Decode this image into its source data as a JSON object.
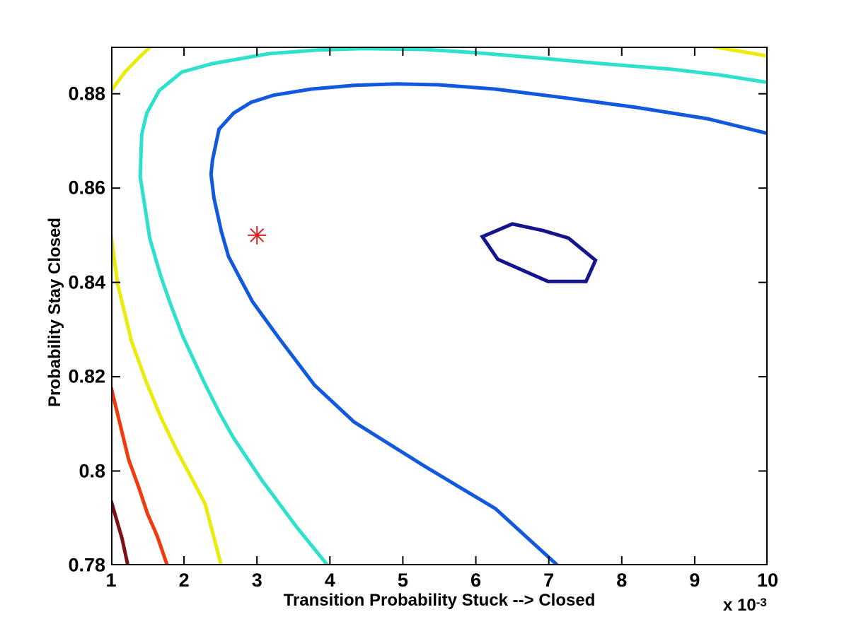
{
  "figure": {
    "background": "#ffffff",
    "axis_color": "#000000"
  },
  "chart_data": {
    "type": "contour",
    "title": "",
    "xlabel": "Transition Probability Stuck --> Closed",
    "ylabel": "Probability Stay Closed",
    "x_scale_note": {
      "prefix": "x 10",
      "exponent": "-3"
    },
    "xlim": [
      1,
      10
    ],
    "ylim": [
      0.78,
      0.89
    ],
    "grid": false,
    "legend": "none",
    "xticks": [
      {
        "label": "1",
        "value": 1
      },
      {
        "label": "2",
        "value": 2
      },
      {
        "label": "3",
        "value": 3
      },
      {
        "label": "4",
        "value": 4
      },
      {
        "label": "5",
        "value": 5
      },
      {
        "label": "6",
        "value": 6
      },
      {
        "label": "7",
        "value": 7
      },
      {
        "label": "8",
        "value": 8
      },
      {
        "label": "9",
        "value": 9
      },
      {
        "label": "10",
        "value": 10
      }
    ],
    "yticks": [
      {
        "label": "0.78",
        "value": 0.78
      },
      {
        "label": "0.8",
        "value": 0.8
      },
      {
        "label": "0.82",
        "value": 0.82
      },
      {
        "label": "0.84",
        "value": 0.84
      },
      {
        "label": "0.86",
        "value": 0.86
      },
      {
        "label": "0.88",
        "value": 0.88
      }
    ],
    "marker": {
      "name": "estimate-marker",
      "shape": "asterisk",
      "x": 3.0,
      "y": 0.85,
      "color": "#D62020",
      "size": 13,
      "stroke_width": 2
    },
    "line_width": 5,
    "contours": [
      {
        "name": "level-maroon",
        "color": "#7E1113",
        "closed": false,
        "points": [
          [
            1.0,
            0.7937
          ],
          [
            1.15,
            0.7857
          ],
          [
            1.23,
            0.78
          ]
        ]
      },
      {
        "name": "level-orangered",
        "color": "#F23A0F",
        "closed": false,
        "points": [
          [
            1.0,
            0.8178
          ],
          [
            1.13,
            0.8095
          ],
          [
            1.24,
            0.8025
          ],
          [
            1.38,
            0.7965
          ],
          [
            1.5,
            0.7909
          ],
          [
            1.63,
            0.7863
          ],
          [
            1.77,
            0.78
          ]
        ]
      },
      {
        "name": "level-yellow-upper-left",
        "color": "#EBEB0E",
        "closed": false,
        "points": [
          [
            1.54,
            0.89
          ],
          [
            1.37,
            0.8875
          ],
          [
            1.19,
            0.8846
          ],
          [
            1.06,
            0.8819
          ],
          [
            1.0,
            0.8805
          ]
        ]
      },
      {
        "name": "level-yellow-lower-left",
        "color": "#EBEB0E",
        "closed": false,
        "points": [
          [
            1.0,
            0.85
          ],
          [
            1.09,
            0.8396
          ],
          [
            1.28,
            0.8275
          ],
          [
            1.48,
            0.819
          ],
          [
            1.68,
            0.8115
          ],
          [
            1.9,
            0.8044
          ],
          [
            2.08,
            0.7992
          ],
          [
            2.29,
            0.793
          ],
          [
            2.51,
            0.78
          ]
        ]
      },
      {
        "name": "level-yellow-top-right",
        "color": "#EBEB0E",
        "closed": false,
        "points": [
          [
            9.25,
            0.89
          ],
          [
            10.0,
            0.888
          ]
        ]
      },
      {
        "name": "level-cyan",
        "color": "#2EE1CC",
        "closed": false,
        "points": [
          [
            10.0,
            0.8824
          ],
          [
            9.34,
            0.884
          ],
          [
            8.69,
            0.8852
          ],
          [
            7.72,
            0.8864
          ],
          [
            6.85,
            0.8876
          ],
          [
            6.02,
            0.8887
          ],
          [
            5.3,
            0.8894
          ],
          [
            4.46,
            0.8896
          ],
          [
            3.84,
            0.8893
          ],
          [
            3.16,
            0.8885
          ],
          [
            2.39,
            0.8864
          ],
          [
            1.97,
            0.8846
          ],
          [
            1.66,
            0.8807
          ],
          [
            1.49,
            0.8759
          ],
          [
            1.42,
            0.8714
          ],
          [
            1.4,
            0.8624
          ],
          [
            1.47,
            0.8554
          ],
          [
            1.53,
            0.8494
          ],
          [
            1.68,
            0.8414
          ],
          [
            1.81,
            0.8356
          ],
          [
            1.98,
            0.8287
          ],
          [
            2.27,
            0.819
          ],
          [
            2.48,
            0.8125
          ],
          [
            2.68,
            0.807
          ],
          [
            3.07,
            0.798
          ],
          [
            3.55,
            0.788
          ],
          [
            3.97,
            0.78
          ]
        ]
      },
      {
        "name": "level-blue",
        "color": "#1259E0",
        "closed": false,
        "points": [
          [
            10.0,
            0.8716
          ],
          [
            9.18,
            0.8747
          ],
          [
            8.21,
            0.8771
          ],
          [
            7.24,
            0.8791
          ],
          [
            6.27,
            0.881
          ],
          [
            5.49,
            0.8819
          ],
          [
            4.91,
            0.8821
          ],
          [
            4.33,
            0.8818
          ],
          [
            3.74,
            0.881
          ],
          [
            3.23,
            0.8797
          ],
          [
            2.92,
            0.8782
          ],
          [
            2.68,
            0.8759
          ],
          [
            2.48,
            0.8725
          ],
          [
            2.39,
            0.8659
          ],
          [
            2.37,
            0.8629
          ],
          [
            2.41,
            0.8579
          ],
          [
            2.51,
            0.8509
          ],
          [
            2.61,
            0.8455
          ],
          [
            2.75,
            0.8414
          ],
          [
            2.94,
            0.8359
          ],
          [
            3.31,
            0.828
          ],
          [
            3.79,
            0.8182
          ],
          [
            4.33,
            0.8104
          ],
          [
            5.3,
            0.801
          ],
          [
            6.27,
            0.792
          ],
          [
            7.12,
            0.78
          ]
        ]
      },
      {
        "name": "level-navy-inner",
        "color": "#14148C",
        "closed": true,
        "points": [
          [
            6.09,
            0.8497
          ],
          [
            6.5,
            0.8524
          ],
          [
            6.92,
            0.851
          ],
          [
            7.27,
            0.8494
          ],
          [
            7.64,
            0.8447
          ],
          [
            7.51,
            0.8402
          ],
          [
            6.99,
            0.8402
          ],
          [
            6.3,
            0.8449
          ]
        ]
      }
    ]
  }
}
